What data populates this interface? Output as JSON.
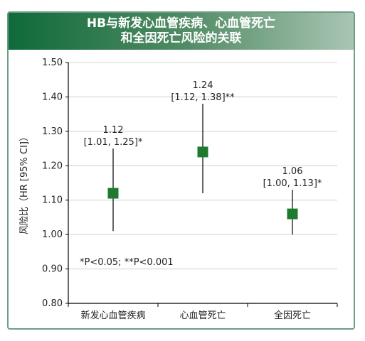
{
  "title_line1": "HB与新发心血管疾病、心血管死亡",
  "title_line2": "和全因死亡风险的关联",
  "chart_data": {
    "type": "scatter",
    "title": "HB与新发心血管疾病、心血管死亡和全因死亡风险的关联",
    "ylabel": "风险比（HR [95% CI]）",
    "xlabel": "",
    "ylim": [
      0.8,
      1.5
    ],
    "yticks": [
      "0.80",
      "0.90",
      "1.00",
      "1.10",
      "1.20",
      "1.30",
      "1.40",
      "1.50"
    ],
    "grid": true,
    "categories": [
      "新发心血管疾病",
      "心血管死亡",
      "全因死亡"
    ],
    "points": [
      {
        "category": "新发心血管疾病",
        "hr": 1.12,
        "lower": 1.01,
        "upper": 1.25,
        "label_value": "1.12",
        "label_ci": "[1.01, 1.25]*"
      },
      {
        "category": "心血管死亡",
        "hr": 1.24,
        "lower": 1.12,
        "upper": 1.38,
        "label_value": "1.24",
        "label_ci": "[1.12, 1.38]**"
      },
      {
        "category": "全因死亡",
        "hr": 1.06,
        "lower": 1.0,
        "upper": 1.13,
        "label_value": "1.06",
        "label_ci": "[1.00, 1.13]*"
      }
    ],
    "annotation": "*P<0.05; **P<0.001",
    "colors": {
      "marker": "#1e7a2e",
      "errorbar": "#333333",
      "grid": "#d0d0d0",
      "axis": "#000000"
    }
  }
}
